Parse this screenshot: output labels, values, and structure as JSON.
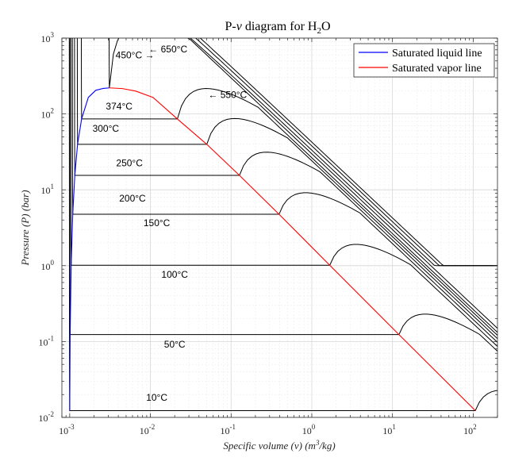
{
  "chart_data": {
    "type": "line",
    "title": {
      "main": "P-",
      "nu": "ν",
      "mid": " diagram for H",
      "sub": "2",
      "tail": "O"
    },
    "xlabel": {
      "pre": "Specific volume (",
      "nu": "ν",
      "mid": ") (m",
      "sup": "3",
      "post": "/kg)"
    },
    "ylabel": {
      "pre": "Pressure (",
      "p": "P",
      "post": ") (bar)"
    },
    "x_scale": "log",
    "y_scale": "log",
    "xlim": [
      0.0008,
      200
    ],
    "ylim": [
      0.01,
      1000
    ],
    "grid": "on",
    "x_ticks": [
      {
        "value": 0.001,
        "base": "10",
        "exp": "-3"
      },
      {
        "value": 0.01,
        "base": "10",
        "exp": "-2"
      },
      {
        "value": 0.1,
        "base": "10",
        "exp": "-1"
      },
      {
        "value": 1,
        "base": "10",
        "exp": "0"
      },
      {
        "value": 10,
        "base": "10",
        "exp": "1"
      },
      {
        "value": 100,
        "base": "10",
        "exp": "2"
      }
    ],
    "y_ticks": [
      {
        "value": 0.01,
        "base": "10",
        "exp": "-2"
      },
      {
        "value": 0.1,
        "base": "10",
        "exp": "-1"
      },
      {
        "value": 1,
        "base": "10",
        "exp": "0"
      },
      {
        "value": 10,
        "base": "10",
        "exp": "1"
      },
      {
        "value": 100,
        "base": "10",
        "exp": "2"
      },
      {
        "value": 1000,
        "base": "10",
        "exp": "3"
      }
    ],
    "legend": {
      "position": "top-right",
      "entries": [
        {
          "label": "Saturated liquid line",
          "color": "#0000ff"
        },
        {
          "label": "Saturated vapor line",
          "color": "#ff0000"
        }
      ]
    },
    "saturation_dome": {
      "liquid_color": "#0000ff",
      "vapor_color": "#ff0000",
      "liquid_line": [
        {
          "v": 0.001,
          "P": 0.0123
        },
        {
          "v": 0.001012,
          "P": 0.1235
        },
        {
          "v": 0.001043,
          "P": 1.013
        },
        {
          "v": 0.00109,
          "P": 4.76
        },
        {
          "v": 0.001157,
          "P": 15.5
        },
        {
          "v": 0.001252,
          "P": 39.8
        },
        {
          "v": 0.001404,
          "P": 85.9
        },
        {
          "v": 0.0017,
          "P": 165
        },
        {
          "v": 0.0021,
          "P": 205
        },
        {
          "v": 0.0026,
          "P": 217
        },
        {
          "v": 0.0031,
          "P": 220.6
        }
      ],
      "vapor_line": [
        {
          "v": 0.0031,
          "P": 220.6
        },
        {
          "v": 0.0045,
          "P": 216
        },
        {
          "v": 0.0066,
          "P": 200
        },
        {
          "v": 0.0108,
          "P": 165
        },
        {
          "v": 0.0216,
          "P": 85.9
        },
        {
          "v": 0.05,
          "P": 39.8
        },
        {
          "v": 0.127,
          "P": 15.5
        },
        {
          "v": 0.393,
          "P": 4.76
        },
        {
          "v": 1.67,
          "P": 1.013
        },
        {
          "v": 12.03,
          "P": 0.1235
        },
        {
          "v": 106.3,
          "P": 0.0123
        }
      ]
    },
    "isotherm_color": "#000000",
    "isotherms": [
      {
        "label": "10°C",
        "T": 10,
        "Psat": 0.01228,
        "vf": 0.001,
        "vg": 106.3
      },
      {
        "label": "50°C",
        "T": 50,
        "Psat": 0.1235,
        "vf": 0.001012,
        "vg": 12.03
      },
      {
        "label": "100°C",
        "T": 100,
        "Psat": 1.013,
        "vf": 0.001043,
        "vg": 1.67
      },
      {
        "label": "150°C",
        "T": 150,
        "Psat": 4.76,
        "vf": 0.00109,
        "vg": 0.393
      },
      {
        "label": "200°C",
        "T": 200,
        "Psat": 15.5,
        "vf": 0.001157,
        "vg": 0.127
      },
      {
        "label": "250°C",
        "T": 250,
        "Psat": 39.8,
        "vf": 0.001252,
        "vg": 0.05
      },
      {
        "label": "300°C",
        "T": 300,
        "Psat": 85.9,
        "vf": 0.001404,
        "vg": 0.0216
      },
      {
        "label": "374°C",
        "T": 374,
        "Psat": 220.6,
        "vf": 0.0031,
        "vg": 0.0031
      },
      {
        "label": "450°C",
        "T": 450
      },
      {
        "label": "550°C",
        "T": 550
      },
      {
        "label": "650°C",
        "T": 650
      }
    ],
    "annotations": [
      {
        "text": "650°C",
        "arrow": "←"
      },
      {
        "text": "450°C",
        "arrow": "→"
      },
      {
        "text": "550°C",
        "arrow": "←"
      }
    ]
  }
}
